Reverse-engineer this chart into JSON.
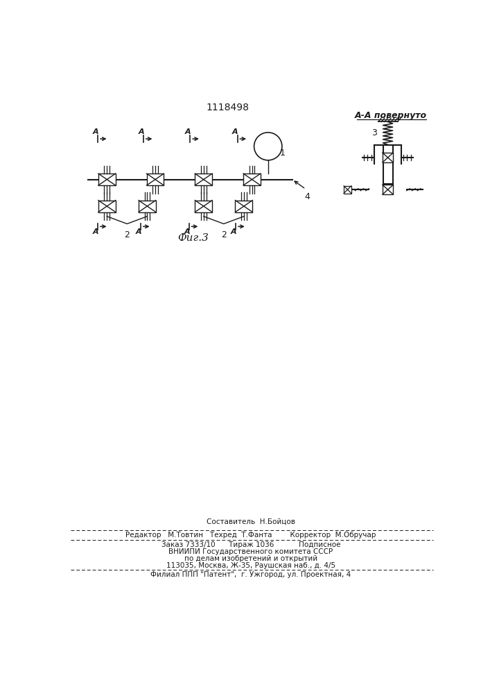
{
  "patent_number": "1118498",
  "fig_label": "Фиг.3",
  "section_label": "А-А повернуто",
  "background_color": "#ffffff",
  "line_color": "#1a1a1a",
  "footer_line1": "Составитель  Н.Бойцов",
  "footer_line2": "Редактор   М.Товтин   Техред  Т.Фанта        Корректор  М.Обручар",
  "footer_line3": "Заказ 7333/10      Тираж 1036           Подписное",
  "footer_line4": "ВНИИПИ Государственного комитета СССР",
  "footer_line5": "по делам изобретений и открытий",
  "footer_line6": "113035, Москва, Ж-35, Раушская наб., д. 4/5",
  "footer_line7": "Филиал ППП \"Патент\",  г. Ужгород, ул. Проектная, 4"
}
